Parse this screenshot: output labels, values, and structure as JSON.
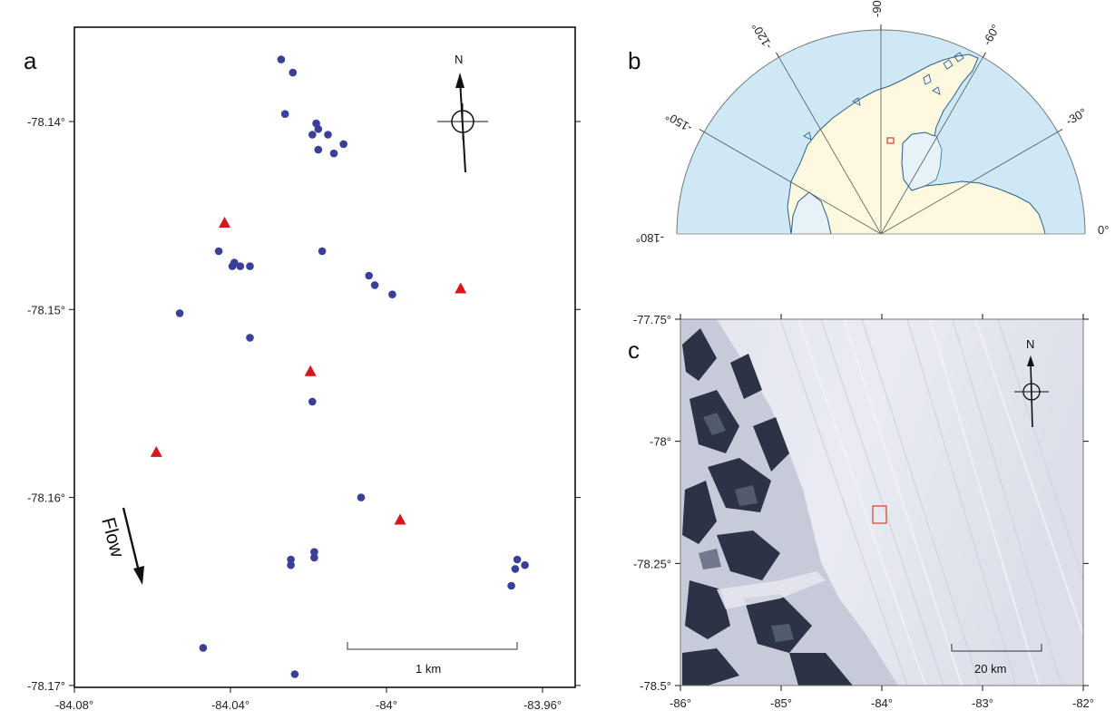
{
  "panel_a": {
    "letter": "a",
    "x_ticks": [
      "-84.08°",
      "-84.04°",
      "-84°",
      "-83.96°"
    ],
    "y_ticks": [
      "-78.14°",
      "-78.15°",
      "-78.16°",
      "-78.17°"
    ],
    "x_range": [
      -84.08,
      -83.95
    ],
    "y_range": [
      -78.17,
      -78.135
    ],
    "north_label": "N",
    "flow_label": "Flow",
    "scale_label": "1 km",
    "circle_color": "#3a3f98",
    "triangle_color": "#d7171c",
    "circles": [
      [
        -84.027,
        -78.1367
      ],
      [
        -84.024,
        -78.1374
      ],
      [
        -84.026,
        -78.1396
      ],
      [
        -84.019,
        -78.1407
      ],
      [
        -84.018,
        -78.1401
      ],
      [
        -84.0175,
        -78.1404
      ],
      [
        -84.015,
        -78.1407
      ],
      [
        -84.0175,
        -78.1415
      ],
      [
        -84.0135,
        -78.1417
      ],
      [
        -84.011,
        -78.1412
      ],
      [
        -84.043,
        -78.1469
      ],
      [
        -84.039,
        -78.1475
      ],
      [
        -84.0375,
        -78.1477
      ],
      [
        -84.0395,
        -78.1477
      ],
      [
        -84.035,
        -78.1477
      ],
      [
        -84.0165,
        -78.1469
      ],
      [
        -84.0045,
        -78.1482
      ],
      [
        -84.003,
        -78.1487
      ],
      [
        -83.9985,
        -78.1492
      ],
      [
        -84.053,
        -78.1502
      ],
      [
        -84.035,
        -78.1515
      ],
      [
        -84.019,
        -78.1549
      ],
      [
        -84.0065,
        -78.16
      ],
      [
        -84.0245,
        -78.1633
      ],
      [
        -84.0245,
        -78.1636
      ],
      [
        -84.0185,
        -78.1632
      ],
      [
        -84.0185,
        -78.1629
      ],
      [
        -83.9665,
        -78.1633
      ],
      [
        -83.9645,
        -78.1636
      ],
      [
        -83.967,
        -78.1638
      ],
      [
        -83.968,
        -78.1647
      ],
      [
        -84.047,
        -78.168
      ],
      [
        -84.0235,
        -78.1694
      ]
    ],
    "triangles": [
      [
        -84.0415,
        -78.1454
      ],
      [
        -83.981,
        -78.1489
      ],
      [
        -84.0195,
        -78.1533
      ],
      [
        -84.059,
        -78.1576
      ],
      [
        -83.9965,
        -78.1612
      ]
    ]
  },
  "panel_b": {
    "letter": "b",
    "lon_labels": [
      "-180°",
      "-150°",
      "-120°",
      "-90°",
      "-60°",
      "-30°",
      "0°"
    ],
    "ocean_color": "#cfe8f6",
    "land_color": "#fdf9df",
    "ice_shelf_color": "#e7f1f8"
  },
  "panel_c": {
    "letter": "c",
    "x_ticks": [
      "-86°",
      "-85°",
      "-84°",
      "-83°",
      "-82°"
    ],
    "y_ticks": [
      "-77.75°",
      "-78°",
      "-78.25°",
      "-78.5°"
    ],
    "north_label": "N",
    "scale_label": "20 km",
    "box_color": "#e03a2e"
  }
}
